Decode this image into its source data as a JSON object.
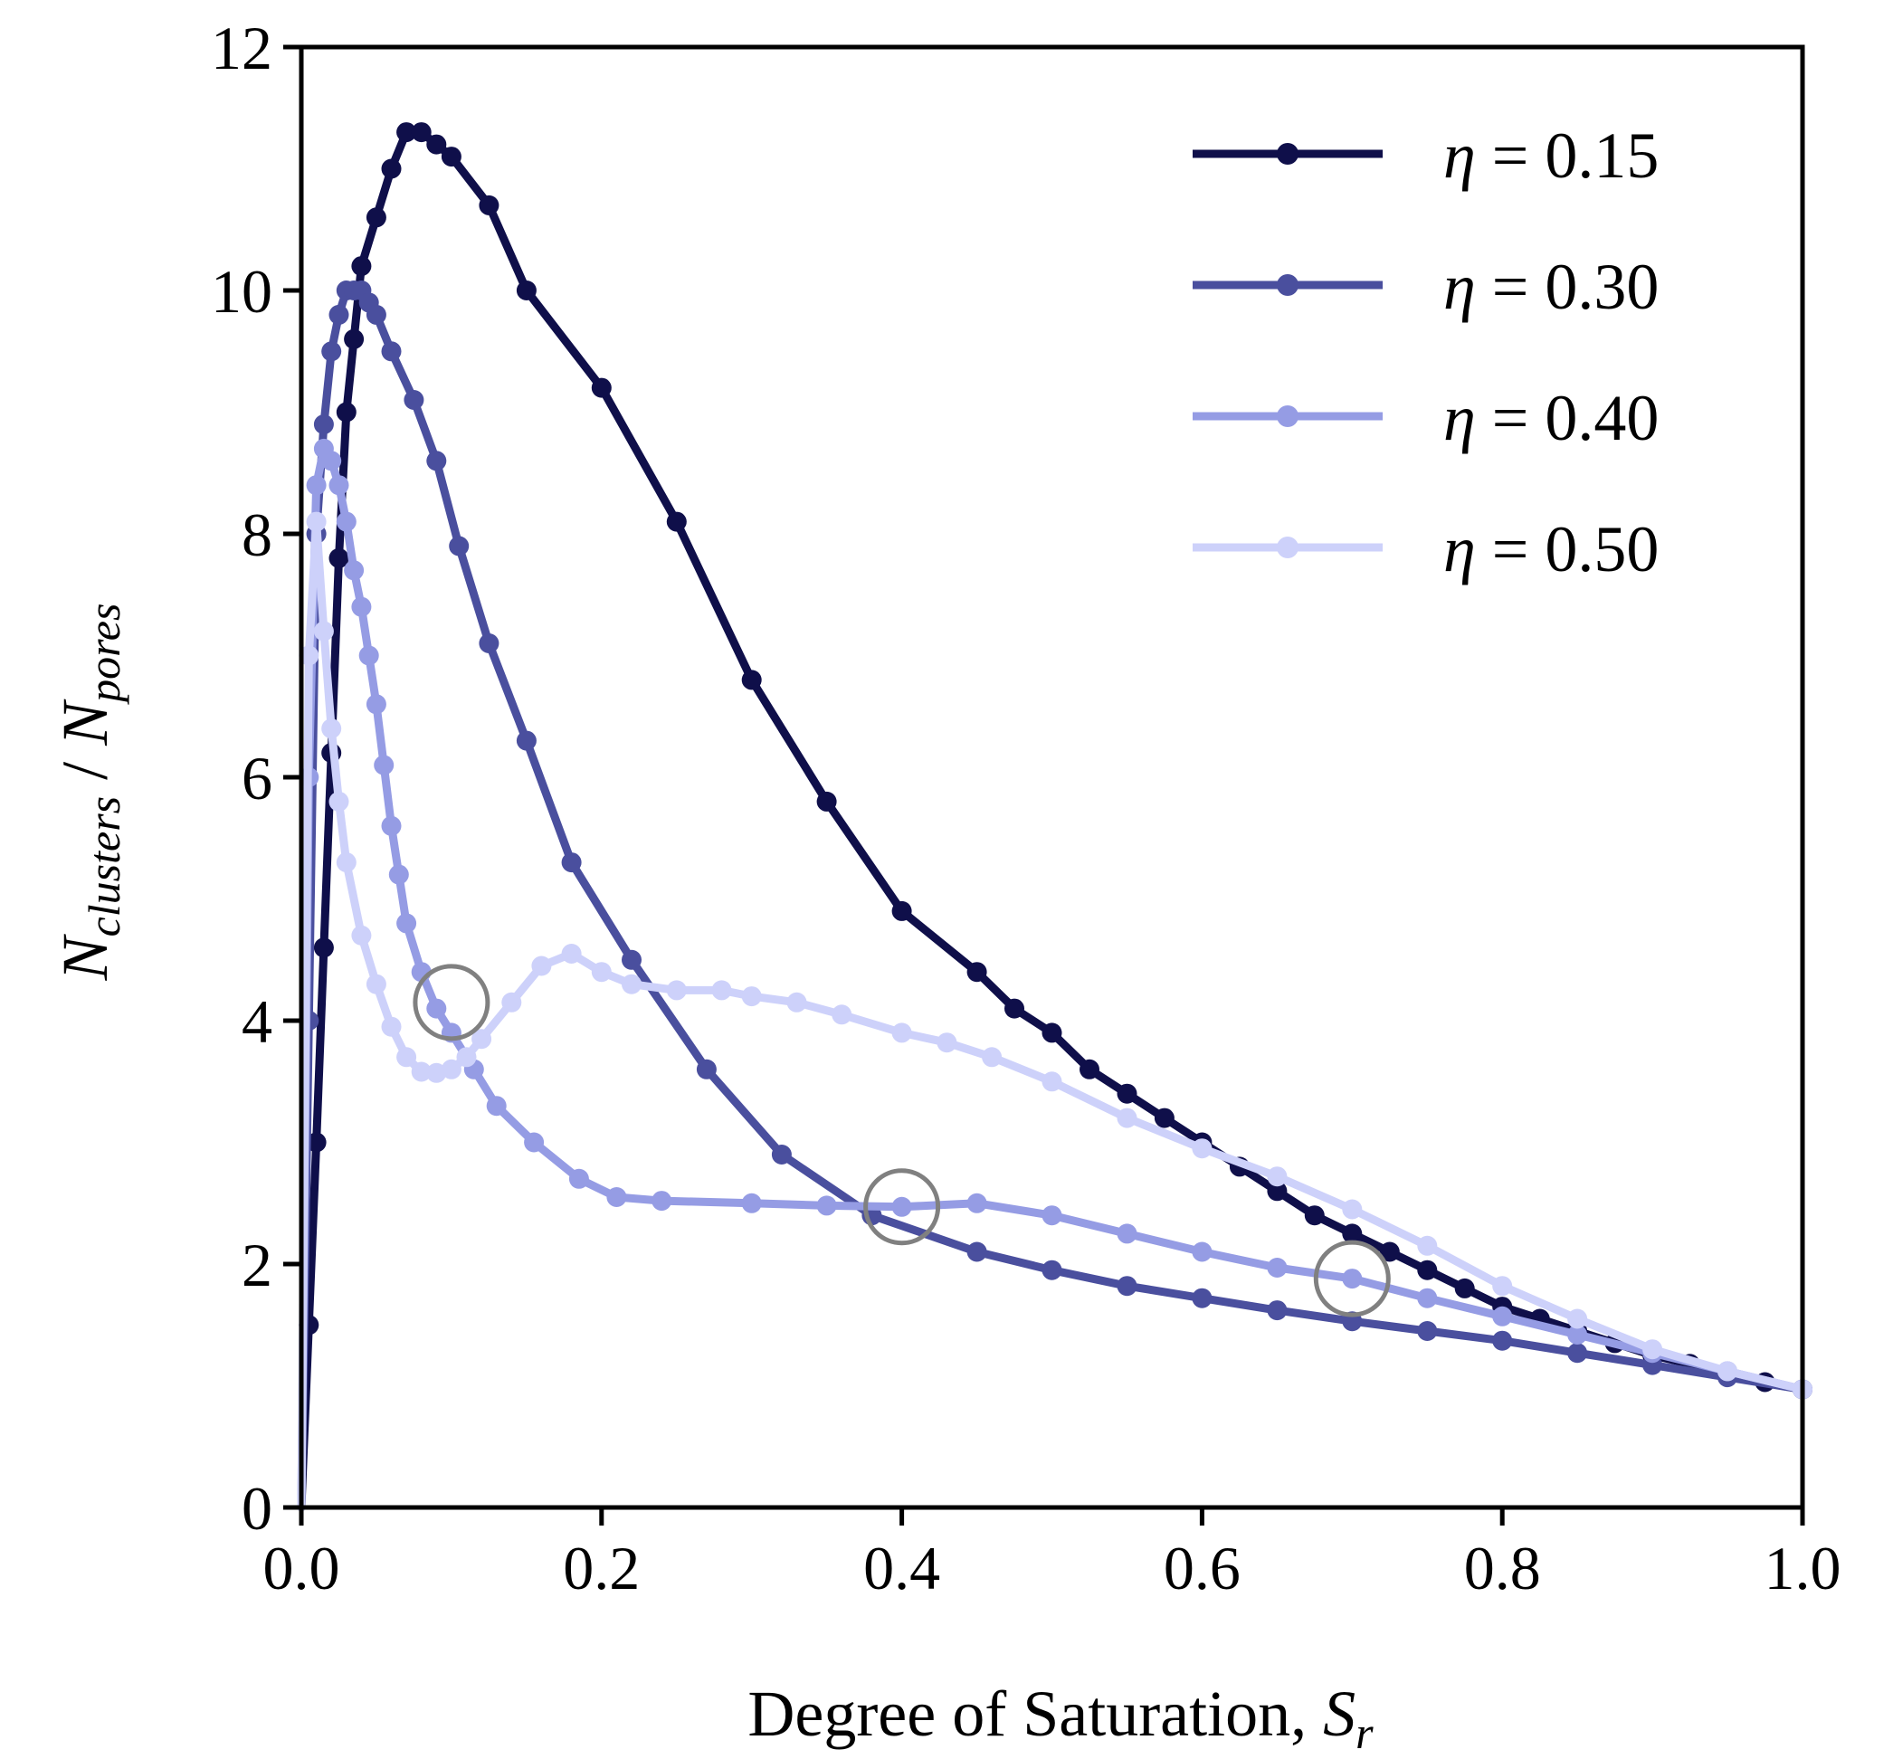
{
  "chart_data": {
    "type": "line",
    "xlabel": "Degree of Saturation, ",
    "xlabel_symbol": "S",
    "xlabel_sub": "r",
    "ylabel_num": "N",
    "ylabel_num_sub": "clusters",
    "ylabel_sep": " / ",
    "ylabel_den": "N",
    "ylabel_den_sub": "pores",
    "xlim": [
      0,
      1
    ],
    "ylim": [
      0,
      12
    ],
    "xticks": [
      0.0,
      0.2,
      0.4,
      0.6,
      0.8,
      1.0
    ],
    "xtick_labels": [
      "0.0",
      "0.2",
      "0.4",
      "0.6",
      "0.8",
      "1.0"
    ],
    "yticks": [
      0,
      2,
      4,
      6,
      8,
      10,
      12
    ],
    "ytick_labels": [
      "0",
      "2",
      "4",
      "6",
      "8",
      "10",
      "12"
    ],
    "grid": false,
    "legend_position": "top-right",
    "series": [
      {
        "name": "η = 0.15",
        "legend_symbol": "η",
        "legend_value": " = 0.15",
        "color": "#0f0f4a",
        "x": [
          0.0,
          0.005,
          0.01,
          0.015,
          0.02,
          0.025,
          0.03,
          0.035,
          0.04,
          0.05,
          0.06,
          0.07,
          0.08,
          0.09,
          0.1,
          0.125,
          0.15,
          0.2,
          0.25,
          0.3,
          0.35,
          0.4,
          0.45,
          0.475,
          0.5,
          0.525,
          0.55,
          0.575,
          0.6,
          0.625,
          0.65,
          0.675,
          0.7,
          0.725,
          0.75,
          0.775,
          0.8,
          0.825,
          0.85,
          0.875,
          0.9,
          0.925,
          0.95,
          0.975,
          1.0
        ],
        "y": [
          0.0,
          1.5,
          3.0,
          4.6,
          6.2,
          7.8,
          9.0,
          9.6,
          10.2,
          10.6,
          11.0,
          11.3,
          11.3,
          11.2,
          11.1,
          10.7,
          10.0,
          9.2,
          8.1,
          6.8,
          5.8,
          4.9,
          4.4,
          4.1,
          3.9,
          3.6,
          3.4,
          3.2,
          3.0,
          2.8,
          2.6,
          2.4,
          2.25,
          2.1,
          1.95,
          1.8,
          1.65,
          1.55,
          1.45,
          1.35,
          1.25,
          1.18,
          1.1,
          1.03,
          0.97
        ]
      },
      {
        "name": "η = 0.30",
        "legend_symbol": "η",
        "legend_value": " = 0.30",
        "color": "#4a4f9e",
        "x": [
          0.0,
          0.005,
          0.01,
          0.015,
          0.02,
          0.025,
          0.03,
          0.035,
          0.04,
          0.045,
          0.05,
          0.06,
          0.075,
          0.09,
          0.105,
          0.125,
          0.15,
          0.18,
          0.22,
          0.27,
          0.32,
          0.38,
          0.45,
          0.5,
          0.55,
          0.6,
          0.65,
          0.7,
          0.75,
          0.8,
          0.85,
          0.9,
          0.95,
          1.0
        ],
        "y": [
          0.0,
          4.0,
          8.0,
          8.9,
          9.5,
          9.8,
          10.0,
          10.0,
          10.0,
          9.9,
          9.8,
          9.5,
          9.1,
          8.6,
          7.9,
          7.1,
          6.3,
          5.3,
          4.5,
          3.6,
          2.9,
          2.4,
          2.1,
          1.95,
          1.82,
          1.72,
          1.62,
          1.53,
          1.45,
          1.37,
          1.27,
          1.17,
          1.07,
          0.97
        ]
      },
      {
        "name": "η = 0.40",
        "legend_symbol": "η",
        "legend_value": " = 0.40",
        "color": "#959ce4",
        "x": [
          0.0,
          0.005,
          0.01,
          0.015,
          0.02,
          0.025,
          0.03,
          0.035,
          0.04,
          0.045,
          0.05,
          0.055,
          0.06,
          0.065,
          0.07,
          0.08,
          0.09,
          0.1,
          0.115,
          0.13,
          0.155,
          0.185,
          0.21,
          0.24,
          0.3,
          0.35,
          0.4,
          0.45,
          0.5,
          0.55,
          0.6,
          0.65,
          0.7,
          0.75,
          0.8,
          0.85,
          0.9,
          0.95,
          1.0
        ],
        "y": [
          0.0,
          6.0,
          8.4,
          8.7,
          8.6,
          8.4,
          8.1,
          7.7,
          7.4,
          7.0,
          6.6,
          6.1,
          5.6,
          5.2,
          4.8,
          4.4,
          4.1,
          3.9,
          3.6,
          3.3,
          3.0,
          2.7,
          2.55,
          2.52,
          2.5,
          2.48,
          2.47,
          2.5,
          2.4,
          2.25,
          2.1,
          1.97,
          1.88,
          1.72,
          1.57,
          1.42,
          1.27,
          1.12,
          0.97
        ]
      },
      {
        "name": "η = 0.50",
        "legend_symbol": "η",
        "legend_value": " = 0.50",
        "color": "#cdd1fa",
        "x": [
          0.0,
          0.005,
          0.01,
          0.015,
          0.02,
          0.025,
          0.03,
          0.04,
          0.05,
          0.06,
          0.07,
          0.08,
          0.09,
          0.1,
          0.11,
          0.12,
          0.14,
          0.16,
          0.18,
          0.2,
          0.22,
          0.25,
          0.28,
          0.3,
          0.33,
          0.36,
          0.4,
          0.43,
          0.46,
          0.5,
          0.55,
          0.6,
          0.65,
          0.7,
          0.75,
          0.8,
          0.85,
          0.9,
          0.95,
          1.0
        ],
        "y": [
          0.0,
          7.0,
          8.1,
          7.2,
          6.4,
          5.8,
          5.3,
          4.7,
          4.3,
          3.95,
          3.7,
          3.58,
          3.57,
          3.6,
          3.7,
          3.85,
          4.15,
          4.45,
          4.55,
          4.4,
          4.3,
          4.25,
          4.25,
          4.2,
          4.15,
          4.05,
          3.9,
          3.82,
          3.7,
          3.5,
          3.2,
          2.95,
          2.72,
          2.45,
          2.15,
          1.82,
          1.55,
          1.3,
          1.12,
          0.97
        ]
      }
    ],
    "annotations": [
      {
        "shape": "circle",
        "x": 0.1,
        "y": 4.15,
        "color": "#808080"
      },
      {
        "shape": "circle",
        "x": 0.4,
        "y": 2.47,
        "color": "#808080"
      },
      {
        "shape": "circle",
        "x": 0.7,
        "y": 1.88,
        "color": "#808080"
      }
    ]
  }
}
